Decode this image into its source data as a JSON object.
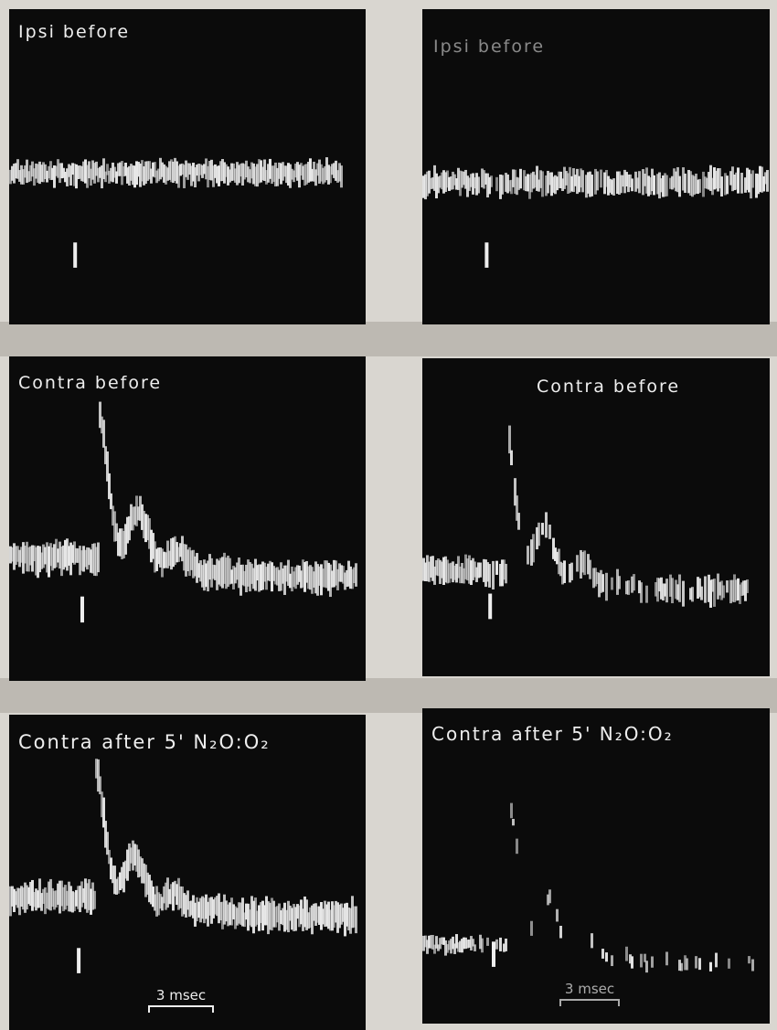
{
  "panels": [
    {
      "label": "Ipsi before"
    },
    {
      "label": "Ipsi before"
    },
    {
      "label": "Contra before"
    },
    {
      "label": "Contra before"
    },
    {
      "label": "Contra after 5' N₂O:O₂",
      "scale_bar": "3 msec"
    },
    {
      "label": "Contra after 5' N₂O:O₂",
      "scale_bar": "3 msec"
    }
  ]
}
